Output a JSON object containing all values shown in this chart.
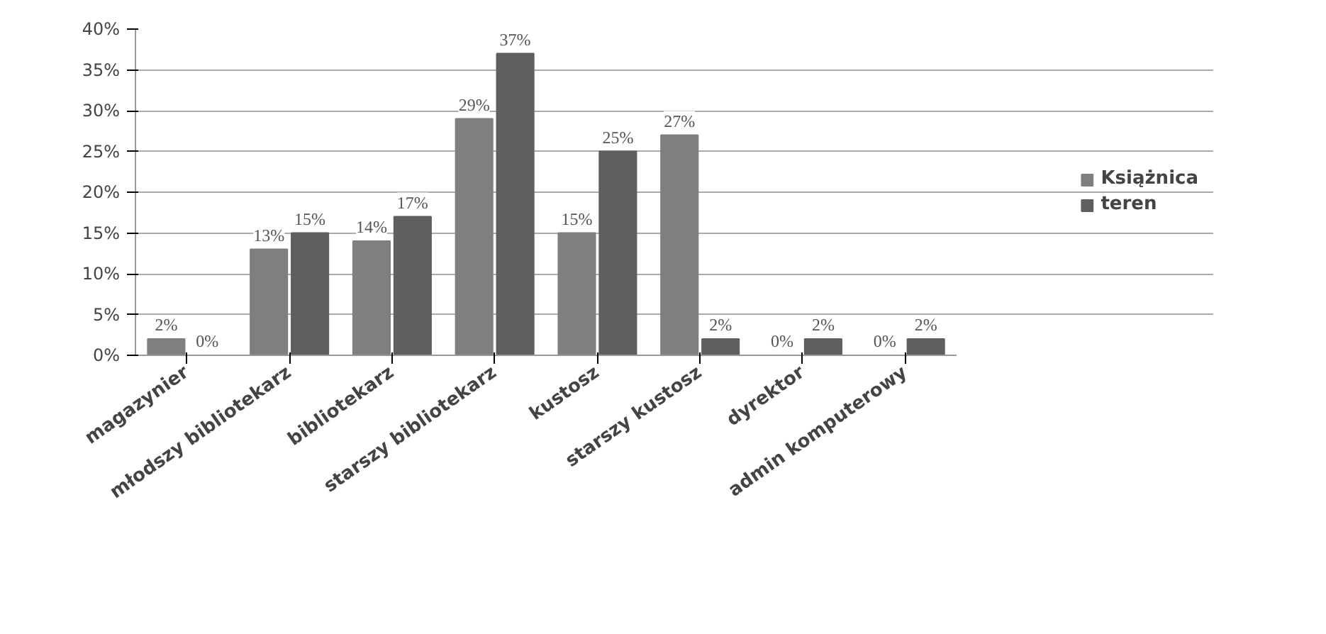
{
  "chart_data": {
    "type": "bar",
    "categories": [
      "magazynier",
      "młodszy bibliotekarz",
      "bibliotekarz",
      "starszy bibliotekarz",
      "kustosz",
      "starszy kustosz",
      "dyrektor",
      "admin komputerowy"
    ],
    "series": [
      {
        "name": "Książnica",
        "color": "#7f7f7f",
        "values": [
          2,
          13,
          14,
          29,
          15,
          27,
          0,
          0
        ],
        "value_labels": [
          "2%",
          "13%",
          "14%",
          "29%",
          "15%",
          "27%",
          "0%",
          "0%"
        ]
      },
      {
        "name": "teren",
        "color": "#5f5f5f",
        "values": [
          0,
          15,
          17,
          37,
          25,
          2,
          2,
          2
        ],
        "value_labels": [
          "0%",
          "15%",
          "17%",
          "37%",
          "25%",
          "2%",
          "2%",
          "2%"
        ]
      }
    ],
    "ylim": [
      0,
      40
    ],
    "yticks": [
      {
        "value": 0,
        "label": "0%"
      },
      {
        "value": 5,
        "label": "5%"
      },
      {
        "value": 10,
        "label": "10%"
      },
      {
        "value": 15,
        "label": "15%"
      },
      {
        "value": 20,
        "label": "20%"
      },
      {
        "value": 25,
        "label": "25%"
      },
      {
        "value": 30,
        "label": "30%"
      },
      {
        "value": 35,
        "label": "35%"
      },
      {
        "value": 40,
        "label": "40%"
      }
    ],
    "grid": "y",
    "legend": "right"
  }
}
